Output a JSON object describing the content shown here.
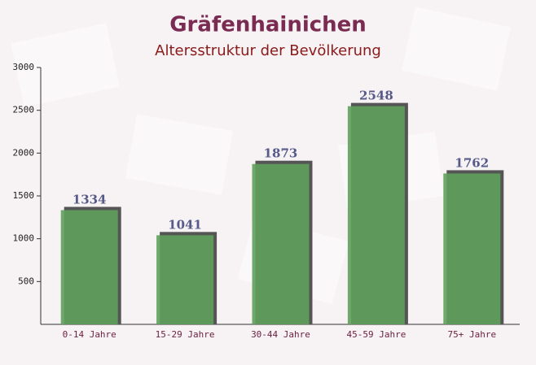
{
  "chart_data": {
    "type": "bar",
    "title": "Gräfenhainichen",
    "subtitle": "Altersstruktur der Bevölkerung",
    "categories": [
      "0-14 Jahre",
      "15-29 Jahre",
      "30-44 Jahre",
      "45-59 Jahre",
      "75+ Jahre"
    ],
    "values": [
      1334,
      1041,
      1873,
      2548,
      1762
    ],
    "color": "#5fa05c",
    "ylim": [
      0,
      3000
    ],
    "yticks": [
      500,
      1000,
      1500,
      2000,
      2500,
      3000
    ]
  }
}
